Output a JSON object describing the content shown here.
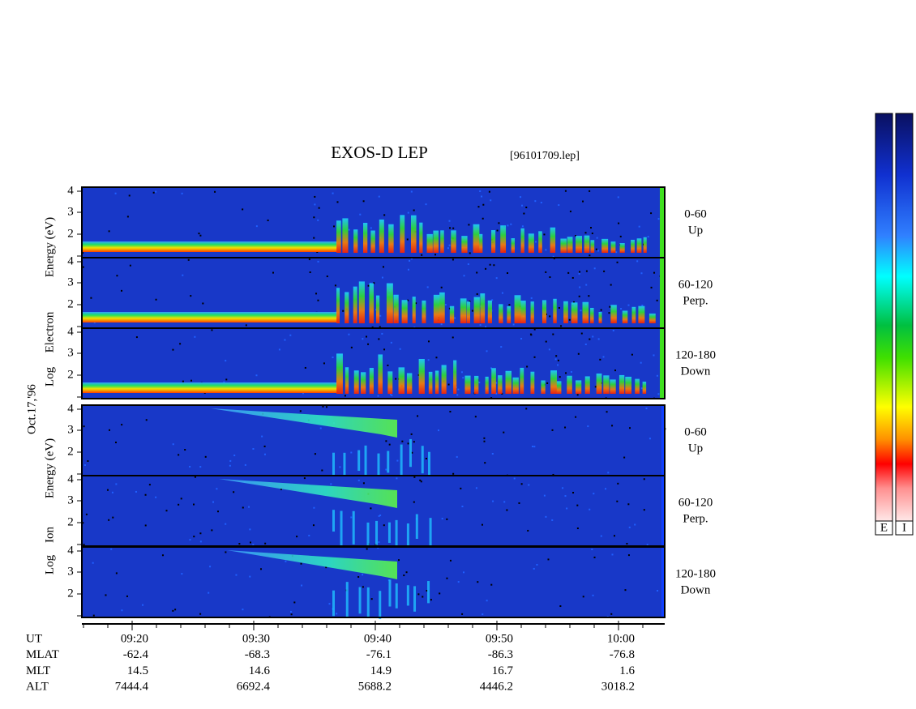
{
  "title": "EXOS-D LEP",
  "file": "[96101709.lep]",
  "date": "Oct.17,'96",
  "electron": {
    "ylabel": [
      "Log",
      "Electron",
      "Energy (eV)"
    ],
    "panels": [
      {
        "label": [
          "0-60",
          "Up"
        ],
        "yticks": [
          "4",
          "3",
          "2"
        ]
      },
      {
        "label": [
          "60-120",
          "Perp."
        ],
        "yticks": [
          "4",
          "3",
          "2"
        ]
      },
      {
        "label": [
          "120-180",
          "Down"
        ],
        "yticks": [
          "4",
          "3",
          "2"
        ]
      }
    ]
  },
  "ion": {
    "ylabel": [
      "Log",
      "Ion",
      "Energy (eV)"
    ],
    "panels": [
      {
        "label": [
          "0-60",
          "Up"
        ],
        "yticks": [
          "4",
          "3",
          "2"
        ]
      },
      {
        "label": [
          "60-120",
          "Perp."
        ],
        "yticks": [
          "4",
          "3",
          "2"
        ]
      },
      {
        "label": [
          "120-180",
          "Down"
        ],
        "yticks": [
          "4",
          "3",
          "2"
        ]
      }
    ]
  },
  "colorbar": {
    "labels": [
      "E",
      "I"
    ]
  },
  "footer": {
    "row_labels": [
      "UT",
      "MLAT",
      "MLT",
      "ALT"
    ],
    "columns": [
      [
        "09:20",
        "-62.4",
        "14.5",
        "7444.4"
      ],
      [
        "09:30",
        "-68.3",
        "14.6",
        "6692.4"
      ],
      [
        "09:40",
        "-76.1",
        "14.9",
        "5688.2"
      ],
      [
        "09:50",
        "-86.3",
        "16.7",
        "4446.2"
      ],
      [
        "10:00",
        "-76.8",
        "1.6",
        "3018.2"
      ]
    ]
  }
}
